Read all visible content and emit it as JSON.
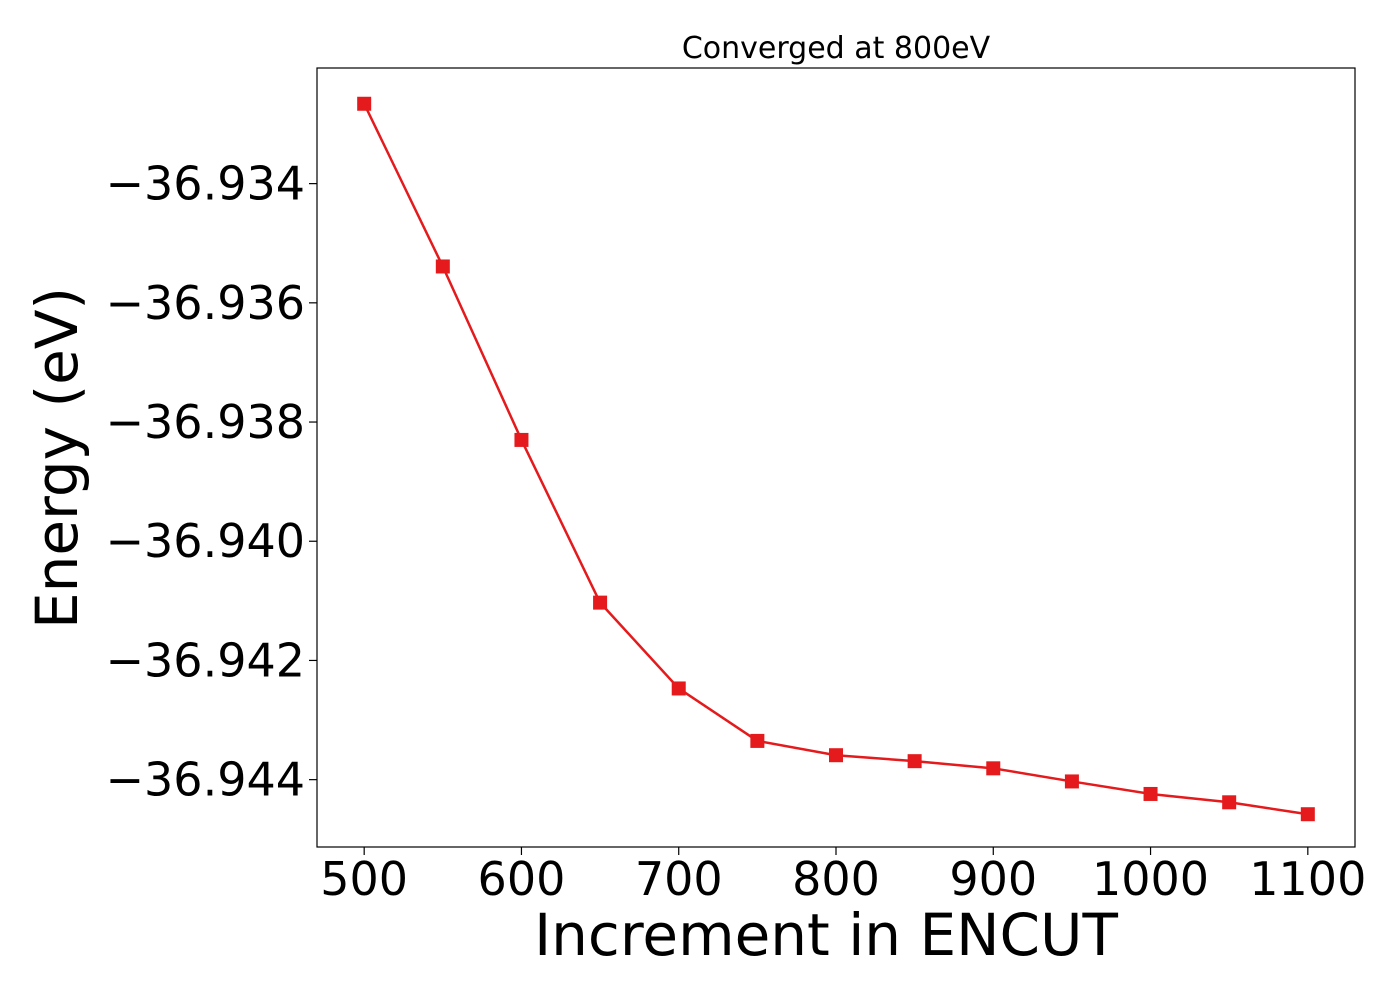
{
  "chart_data": {
    "type": "line",
    "title": "Converged at 800eV",
    "xlabel": "Increment in ENCUT",
    "ylabel": "Energy (eV)",
    "x": [
      500,
      550,
      600,
      650,
      700,
      750,
      800,
      850,
      900,
      950,
      1000,
      1050,
      1100
    ],
    "series": [
      {
        "values": [
          -36.93266,
          -36.93539,
          -36.9383,
          -36.94103,
          -36.94247,
          -36.94335,
          -36.94359,
          -36.94369,
          -36.94381,
          -36.94403,
          -36.94424,
          -36.94438,
          -36.94458
        ],
        "color": "#e41a1c",
        "marker": "square"
      }
    ],
    "xticks": [
      500,
      600,
      700,
      800,
      900,
      1000,
      1100
    ],
    "xtick_labels": [
      "500",
      "600",
      "700",
      "800",
      "900",
      "1000",
      "1100"
    ],
    "yticks": [
      -36.934,
      -36.936,
      -36.938,
      -36.94,
      -36.942,
      -36.944
    ],
    "ytick_labels": [
      "−36.934",
      "−36.936",
      "−36.938",
      "−36.940",
      "−36.942",
      "−36.944"
    ],
    "xlim": [
      470,
      1130
    ],
    "ylim": [
      -36.94513,
      -36.93206
    ],
    "grid": false,
    "legend": "none"
  }
}
